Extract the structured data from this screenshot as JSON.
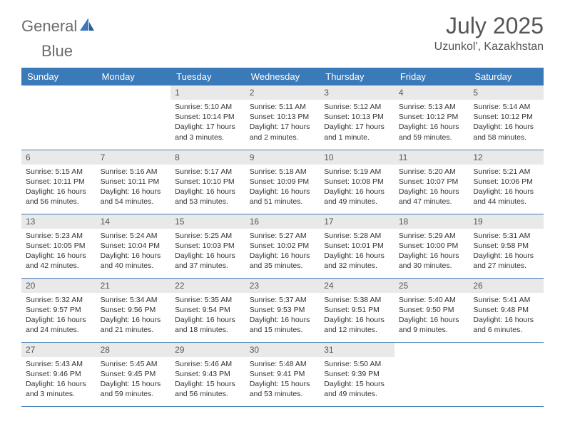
{
  "brand": {
    "word1": "General",
    "word2": "Blue"
  },
  "title": "July 2025",
  "location": "Uzunkol', Kazakhstan",
  "colors": {
    "header_bg": "#3a7ab8",
    "header_fg": "#ffffff",
    "daynum_bg": "#e9e9e9",
    "text": "#333333",
    "border": "#3a7ab8",
    "brand_gray": "#6b6b6b",
    "brand_blue": "#3a7ab8"
  },
  "day_headers": [
    "Sunday",
    "Monday",
    "Tuesday",
    "Wednesday",
    "Thursday",
    "Friday",
    "Saturday"
  ],
  "weeks": [
    [
      null,
      null,
      {
        "n": "1",
        "sr": "5:10 AM",
        "ss": "10:14 PM",
        "dl": "17 hours and 3 minutes."
      },
      {
        "n": "2",
        "sr": "5:11 AM",
        "ss": "10:13 PM",
        "dl": "17 hours and 2 minutes."
      },
      {
        "n": "3",
        "sr": "5:12 AM",
        "ss": "10:13 PM",
        "dl": "17 hours and 1 minute."
      },
      {
        "n": "4",
        "sr": "5:13 AM",
        "ss": "10:12 PM",
        "dl": "16 hours and 59 minutes."
      },
      {
        "n": "5",
        "sr": "5:14 AM",
        "ss": "10:12 PM",
        "dl": "16 hours and 58 minutes."
      }
    ],
    [
      {
        "n": "6",
        "sr": "5:15 AM",
        "ss": "10:11 PM",
        "dl": "16 hours and 56 minutes."
      },
      {
        "n": "7",
        "sr": "5:16 AM",
        "ss": "10:11 PM",
        "dl": "16 hours and 54 minutes."
      },
      {
        "n": "8",
        "sr": "5:17 AM",
        "ss": "10:10 PM",
        "dl": "16 hours and 53 minutes."
      },
      {
        "n": "9",
        "sr": "5:18 AM",
        "ss": "10:09 PM",
        "dl": "16 hours and 51 minutes."
      },
      {
        "n": "10",
        "sr": "5:19 AM",
        "ss": "10:08 PM",
        "dl": "16 hours and 49 minutes."
      },
      {
        "n": "11",
        "sr": "5:20 AM",
        "ss": "10:07 PM",
        "dl": "16 hours and 47 minutes."
      },
      {
        "n": "12",
        "sr": "5:21 AM",
        "ss": "10:06 PM",
        "dl": "16 hours and 44 minutes."
      }
    ],
    [
      {
        "n": "13",
        "sr": "5:23 AM",
        "ss": "10:05 PM",
        "dl": "16 hours and 42 minutes."
      },
      {
        "n": "14",
        "sr": "5:24 AM",
        "ss": "10:04 PM",
        "dl": "16 hours and 40 minutes."
      },
      {
        "n": "15",
        "sr": "5:25 AM",
        "ss": "10:03 PM",
        "dl": "16 hours and 37 minutes."
      },
      {
        "n": "16",
        "sr": "5:27 AM",
        "ss": "10:02 PM",
        "dl": "16 hours and 35 minutes."
      },
      {
        "n": "17",
        "sr": "5:28 AM",
        "ss": "10:01 PM",
        "dl": "16 hours and 32 minutes."
      },
      {
        "n": "18",
        "sr": "5:29 AM",
        "ss": "10:00 PM",
        "dl": "16 hours and 30 minutes."
      },
      {
        "n": "19",
        "sr": "5:31 AM",
        "ss": "9:58 PM",
        "dl": "16 hours and 27 minutes."
      }
    ],
    [
      {
        "n": "20",
        "sr": "5:32 AM",
        "ss": "9:57 PM",
        "dl": "16 hours and 24 minutes."
      },
      {
        "n": "21",
        "sr": "5:34 AM",
        "ss": "9:56 PM",
        "dl": "16 hours and 21 minutes."
      },
      {
        "n": "22",
        "sr": "5:35 AM",
        "ss": "9:54 PM",
        "dl": "16 hours and 18 minutes."
      },
      {
        "n": "23",
        "sr": "5:37 AM",
        "ss": "9:53 PM",
        "dl": "16 hours and 15 minutes."
      },
      {
        "n": "24",
        "sr": "5:38 AM",
        "ss": "9:51 PM",
        "dl": "16 hours and 12 minutes."
      },
      {
        "n": "25",
        "sr": "5:40 AM",
        "ss": "9:50 PM",
        "dl": "16 hours and 9 minutes."
      },
      {
        "n": "26",
        "sr": "5:41 AM",
        "ss": "9:48 PM",
        "dl": "16 hours and 6 minutes."
      }
    ],
    [
      {
        "n": "27",
        "sr": "5:43 AM",
        "ss": "9:46 PM",
        "dl": "16 hours and 3 minutes."
      },
      {
        "n": "28",
        "sr": "5:45 AM",
        "ss": "9:45 PM",
        "dl": "15 hours and 59 minutes."
      },
      {
        "n": "29",
        "sr": "5:46 AM",
        "ss": "9:43 PM",
        "dl": "15 hours and 56 minutes."
      },
      {
        "n": "30",
        "sr": "5:48 AM",
        "ss": "9:41 PM",
        "dl": "15 hours and 53 minutes."
      },
      {
        "n": "31",
        "sr": "5:50 AM",
        "ss": "9:39 PM",
        "dl": "15 hours and 49 minutes."
      },
      null,
      null
    ]
  ],
  "labels": {
    "sunrise": "Sunrise:",
    "sunset": "Sunset:",
    "daylight": "Daylight:"
  }
}
